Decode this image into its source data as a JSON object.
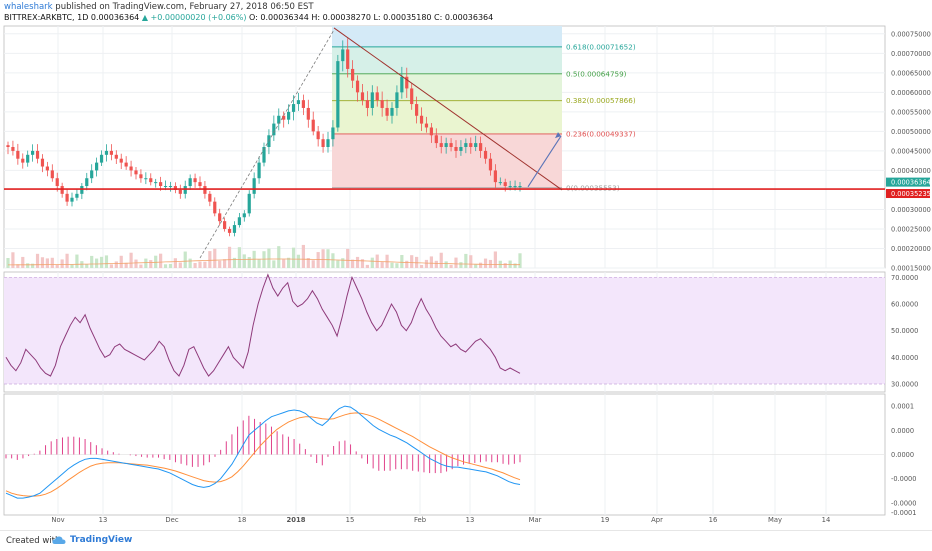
{
  "header": {
    "user": "whaleshark",
    "published": "published on TradingView.com, February 27, 2018 06:50 EST",
    "symbol": "BITTREX:ARKBTC, 1D",
    "ohlc_o": "0.00036364",
    "change": "▲ +0.00000020 (+0.06%)",
    "ohlc_rest": "O: 0.00036344  H: 0.00038270  L: 0.00035180  C: 0.00036364"
  },
  "footer": {
    "created_with": "Created with",
    "brand": "TradingView"
  },
  "colors": {
    "up": "#26a69a",
    "down": "#ef5350",
    "rsi_line": "#8e3a7a",
    "rsi_band": "#f3e6fb",
    "macd_line": "#2196f3",
    "signal_line": "#ff8f3a",
    "hist": "#e0408a",
    "support": "#e02020",
    "trend": "#a0332e",
    "projection": "#5a74b8"
  },
  "chart_data": [
    {
      "type": "candlestick",
      "title": "BITTREX:ARKBTC, 1D",
      "x": [
        "Nov",
        "13",
        "Dec",
        "18",
        "2018",
        "15",
        "Feb",
        "13",
        "Mar",
        "19",
        "Apr",
        "16",
        "May",
        "14"
      ],
      "y_ticks": [
        "0.00075000",
        "0.00070000",
        "0.00065000",
        "0.00060000",
        "0.00055000",
        "0.00050000",
        "0.00045000",
        "0.00040000",
        "0.00030000",
        "0.00025000",
        "0.00020000",
        "0.00015000"
      ],
      "ylim": [
        0.00015,
        0.00077
      ],
      "price_labels": [
        {
          "value": 0.00036364,
          "text": "0.00036364",
          "color": "#26a69a"
        },
        {
          "value": 0.00035235,
          "text": "0.00035235",
          "color": "#e02020"
        }
      ],
      "support_level": 0.00035235,
      "close_series": [
        0.00046,
        0.00045,
        0.00043,
        0.00042,
        0.00044,
        0.00045,
        0.00043,
        0.00041,
        0.0004,
        0.00038,
        0.00036,
        0.00034,
        0.00032,
        0.00033,
        0.00034,
        0.00036,
        0.00038,
        0.0004,
        0.00042,
        0.00044,
        0.00045,
        0.00044,
        0.00043,
        0.00042,
        0.00041,
        0.0004,
        0.00039,
        0.00038,
        0.00038,
        0.00037,
        0.00037,
        0.00036,
        0.00036,
        0.00036,
        0.00035,
        0.00034,
        0.00036,
        0.00038,
        0.00037,
        0.00036,
        0.00034,
        0.00032,
        0.00029,
        0.00027,
        0.00025,
        0.00024,
        0.00026,
        0.00028,
        0.00029,
        0.00034,
        0.00038,
        0.00042,
        0.00046,
        0.00049,
        0.00052,
        0.00054,
        0.00053,
        0.00055,
        0.00057,
        0.00058,
        0.00056,
        0.00053,
        0.0005,
        0.00048,
        0.00046,
        0.00048,
        0.00051,
        0.00068,
        0.00071,
        0.00066,
        0.00063,
        0.0006,
        0.00058,
        0.00056,
        0.0006,
        0.00058,
        0.00056,
        0.00054,
        0.00056,
        0.0006,
        0.00064,
        0.00061,
        0.00057,
        0.00054,
        0.00052,
        0.00051,
        0.00049,
        0.00047,
        0.00046,
        0.00047,
        0.00046,
        0.00045,
        0.00046,
        0.00047,
        0.00046,
        0.00047,
        0.00045,
        0.00043,
        0.0004,
        0.00037,
        0.00037,
        0.00036,
        0.00036,
        0.00036,
        0.00036
      ],
      "fibonacci": [
        {
          "ratio": 0,
          "value": 0.00035553,
          "label": "0(0.00035553)",
          "color": "#9e9e9e"
        },
        {
          "ratio": 0.236,
          "value": 0.00049337,
          "label": "0.236(0.00049337)",
          "color": "#e05050"
        },
        {
          "ratio": 0.382,
          "value": 0.00057866,
          "label": "0.382(0.00057866)",
          "color": "#9aa820"
        },
        {
          "ratio": 0.5,
          "value": 0.00064759,
          "label": "0.5(0.00064759)",
          "color": "#43a047"
        },
        {
          "ratio": 0.618,
          "value": 0.00071652,
          "label": "0.618(0.00071652)",
          "color": "#26a69a"
        }
      ],
      "annotations": [
        "descending trendline from swing high",
        "projection arrow upward",
        "dashed rise line"
      ]
    },
    {
      "type": "line",
      "name": "RSI",
      "y_ticks": [
        "70.0000",
        "60.0000",
        "50.0000",
        "40.0000",
        "30.0000"
      ],
      "ylim": [
        27,
        72
      ],
      "band": [
        30,
        70
      ],
      "values": [
        40,
        37,
        35,
        38,
        43,
        41,
        39,
        36,
        34,
        33,
        37,
        44,
        48,
        52,
        55,
        53,
        56,
        51,
        47,
        43,
        40,
        41,
        44,
        45,
        43,
        42,
        41,
        40,
        39,
        41,
        43,
        46,
        44,
        39,
        35,
        33,
        37,
        43,
        44,
        40,
        36,
        33,
        35,
        38,
        41,
        44,
        40,
        38,
        36,
        42,
        52,
        60,
        66,
        71,
        66,
        63,
        66,
        68,
        61,
        59,
        60,
        62,
        65,
        62,
        58,
        55,
        52,
        48,
        55,
        63,
        70,
        66,
        62,
        57,
        53,
        50,
        52,
        56,
        60,
        57,
        52,
        50,
        53,
        58,
        62,
        58,
        55,
        51,
        48,
        46,
        44,
        45,
        43,
        42,
        44,
        46,
        47,
        45,
        43,
        40,
        36,
        35,
        36,
        35,
        34
      ]
    },
    {
      "type": "line",
      "name": "MACD",
      "y_ticks": [
        "0.0001",
        "0.0000",
        "0.0000",
        "-0.0000",
        "-0.0000",
        "-0.0001"
      ],
      "ylim": [
        -0.000125,
        0.000125
      ],
      "macd": [
        -8e-05,
        -8.5e-05,
        -9e-05,
        -9e-05,
        -8.8e-05,
        -8.5e-05,
        -8e-05,
        -7e-05,
        -6e-05,
        -5e-05,
        -4e-05,
        -3e-05,
        -2.2e-05,
        -1.5e-05,
        -1e-05,
        -8e-06,
        -8e-06,
        -1e-05,
        -1.2e-05,
        -1.4e-05,
        -1.6e-05,
        -1.8e-05,
        -2e-05,
        -2.2e-05,
        -2.4e-05,
        -2.6e-05,
        -2.8e-05,
        -3e-05,
        -3.4e-05,
        -3.8e-05,
        -4.4e-05,
        -5e-05,
        -5.6e-05,
        -6.2e-05,
        -6.6e-05,
        -6.8e-05,
        -6.6e-05,
        -6e-05,
        -5e-05,
        -3.5e-05,
        -2e-05,
        0.0,
        2e-05,
        4e-05,
        5e-05,
        6e-05,
        7e-05,
        7.8e-05,
        8.2e-05,
        8.6e-05,
        9e-05,
        9.2e-05,
        9e-05,
        8.5e-05,
        7.5e-05,
        6.5e-05,
        6e-05,
        7e-05,
        8.5e-05,
        9.5e-05,
        0.0001,
        9.8e-05,
        9e-05,
        8e-05,
        7e-05,
        6e-05,
        5.2e-05,
        4.6e-05,
        4e-05,
        3.6e-05,
        3e-05,
        2.4e-05,
        1.6e-05,
        8e-06,
        0.0,
        -8e-06,
        -1.4e-05,
        -2e-05,
        -2.4e-05,
        -2.6e-05,
        -2.6e-05,
        -2.8e-05,
        -3e-05,
        -3.2e-05,
        -3.4e-05,
        -3.6e-05,
        -4e-05,
        -4.4e-05,
        -5e-05,
        -5.6e-05,
        -6e-05,
        -6.2e-05
      ],
      "signal": [
        -7.5e-05,
        -8e-05,
        -8.3e-05,
        -8.5e-05,
        -8.6e-05,
        -8.6e-05,
        -8.5e-05,
        -8.2e-05,
        -7.7e-05,
        -7e-05,
        -6.2e-05,
        -5.3e-05,
        -4.5e-05,
        -3.7e-05,
        -3e-05,
        -2.4e-05,
        -2e-05,
        -1.8e-05,
        -1.7e-05,
        -1.7e-05,
        -1.7e-05,
        -1.8e-05,
        -1.9e-05,
        -2e-05,
        -2.1e-05,
        -2.2e-05,
        -2.4e-05,
        -2.6e-05,
        -2.8e-05,
        -3.1e-05,
        -3.4e-05,
        -3.8e-05,
        -4.2e-05,
        -4.6e-05,
        -5e-05,
        -5.4e-05,
        -5.6e-05,
        -5.7e-05,
        -5.6e-05,
        -5.2e-05,
        -4.6e-05,
        -3.6e-05,
        -2.4e-05,
        -1e-05,
        4e-06,
        1.8e-05,
        3e-05,
        4.2e-05,
        5.2e-05,
        6e-05,
        6.7e-05,
        7.2e-05,
        7.6e-05,
        7.8e-05,
        7.8e-05,
        7.6e-05,
        7.4e-05,
        7.3e-05,
        7.4e-05,
        7.8e-05,
        8.2e-05,
        8.5e-05,
        8.6e-05,
        8.5e-05,
        8.2e-05,
        7.8e-05,
        7.3e-05,
        6.7e-05,
        6.1e-05,
        5.5e-05,
        4.9e-05,
        4.3e-05,
        3.7e-05,
        3e-05,
        2.3e-05,
        1.6e-05,
        1e-05,
        4e-06,
        -2e-06,
        -7e-06,
        -1.1e-05,
        -1.5e-05,
        -1.8e-05,
        -2.1e-05,
        -2.4e-05,
        -2.7e-05,
        -3e-05,
        -3.4e-05,
        -3.8e-05,
        -4.3e-05,
        -4.8e-05,
        -5.2e-05
      ]
    }
  ]
}
